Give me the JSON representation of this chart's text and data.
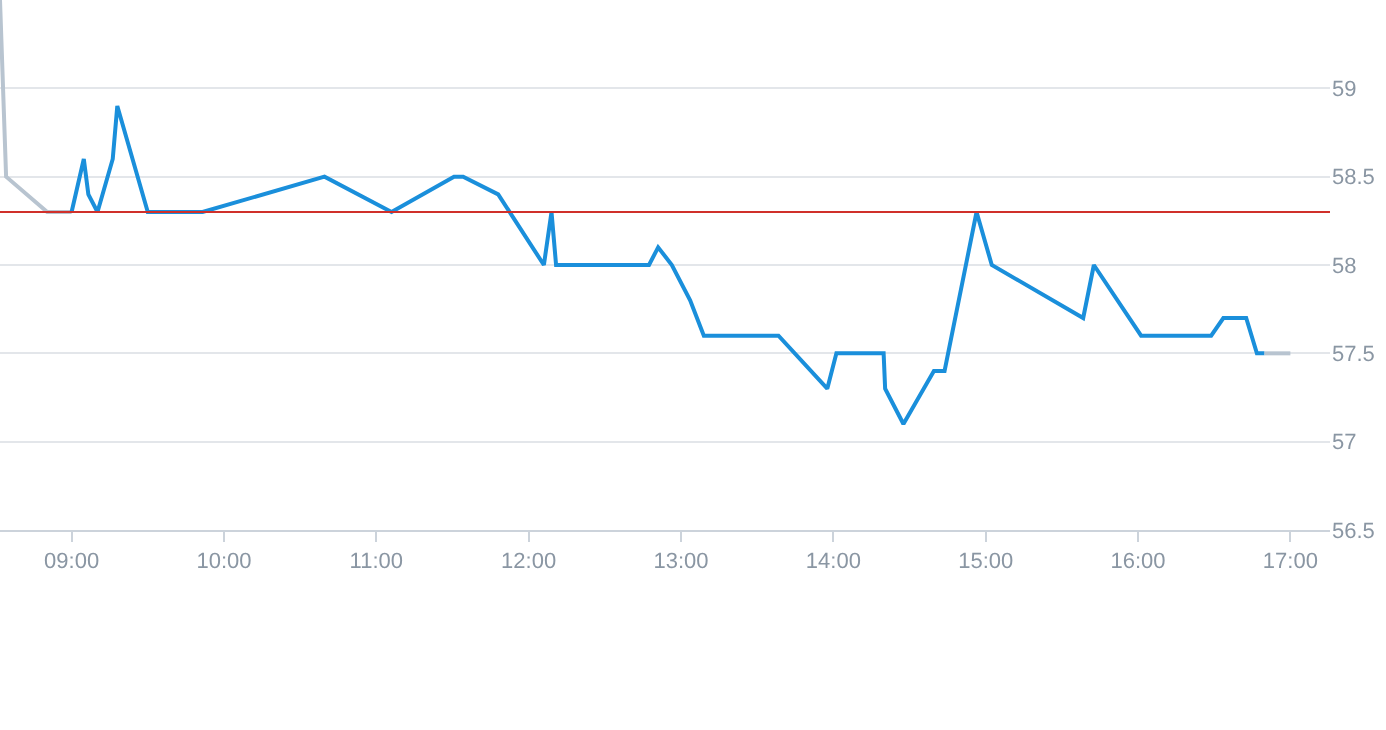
{
  "chart_data": {
    "type": "line",
    "series": [
      {
        "color": "#b8c4d0",
        "x": [
          8.53,
          8.57,
          8.84,
          9.0
        ],
        "values": [
          59.5,
          58.5,
          58.3,
          58.3
        ]
      },
      {
        "color": "#1a8fdb",
        "x": [
          9.0,
          9.08,
          9.11,
          9.17,
          9.27,
          9.3,
          9.5,
          9.86,
          10.66,
          11.1,
          11.51,
          11.57,
          11.8,
          12.1,
          12.15,
          12.18,
          12.79,
          12.85,
          12.94,
          13.06,
          13.15,
          13.64,
          13.96,
          14.02,
          14.33,
          14.34,
          14.46,
          14.66,
          14.73,
          14.94,
          15.04,
          15.64,
          15.71,
          16.02,
          16.48,
          16.56,
          16.71,
          16.78,
          16.83
        ],
        "values": [
          58.3,
          58.6,
          58.4,
          58.3,
          58.6,
          58.9,
          58.3,
          58.3,
          58.5,
          58.3,
          58.5,
          58.5,
          58.4,
          58.0,
          58.3,
          58.0,
          58.0,
          58.1,
          58.0,
          57.8,
          57.6,
          57.6,
          57.3,
          57.5,
          57.5,
          57.3,
          57.1,
          57.4,
          57.4,
          58.3,
          58.0,
          57.7,
          58.0,
          57.6,
          57.6,
          57.7,
          57.7,
          57.5,
          57.5
        ]
      },
      {
        "color": "#b8c4d0",
        "x": [
          16.83,
          17.0
        ],
        "values": [
          57.5,
          57.5
        ]
      }
    ],
    "xlim": [
      8.53,
      17.26
    ],
    "xticks": [
      {
        "value": 9,
        "label": "09:00"
      },
      {
        "value": 10,
        "label": "10:00"
      },
      {
        "value": 11,
        "label": "11:00"
      },
      {
        "value": 12,
        "label": "12:00"
      },
      {
        "value": 13,
        "label": "13:00"
      },
      {
        "value": 14,
        "label": "14:00"
      },
      {
        "value": 15,
        "label": "15:00"
      },
      {
        "value": 16,
        "label": "16:00"
      },
      {
        "value": 17,
        "label": "17:00"
      }
    ],
    "ylim": [
      56.5,
      59.5
    ],
    "yticks": [
      56.5,
      57,
      57.5,
      58,
      58.5,
      59
    ],
    "ref_lines": [
      {
        "axis": "y",
        "value": 58.3,
        "color": "#d0302a"
      }
    ],
    "grid": "y",
    "marker": "none"
  }
}
